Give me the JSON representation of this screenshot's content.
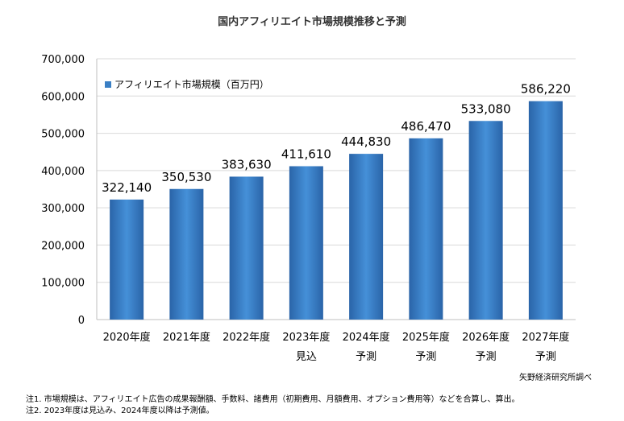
{
  "chart_data": {
    "type": "bar",
    "title": "国内アフィリエイト市場規模推移と予測",
    "categories": [
      "2020年度",
      "2021年度",
      "2022年度",
      "2023年度",
      "2024年度",
      "2025年度",
      "2026年度",
      "2027年度"
    ],
    "category_sublabels": [
      "",
      "",
      "",
      "見込",
      "予測",
      "予測",
      "予測",
      "予測"
    ],
    "series": [
      {
        "name": "アフィリエイト市場規模（百万円）",
        "values": [
          322140,
          350530,
          383630,
          411610,
          444830,
          486470,
          533080,
          586220
        ],
        "labels": [
          "322,140",
          "350,530",
          "383,630",
          "411,610",
          "444,830",
          "486,470",
          "533,080",
          "586,220"
        ]
      }
    ],
    "ylim": [
      0,
      700000
    ],
    "yticks": [
      0,
      100000,
      200000,
      300000,
      400000,
      500000,
      600000,
      700000
    ],
    "ytick_labels": [
      "0",
      "100,000",
      "200,000",
      "300,000",
      "400,000",
      "500,000",
      "600,000",
      "700,000"
    ],
    "grid": true,
    "legend_position": "top-left",
    "bar_color": "#3a7fc4"
  },
  "source": "矢野経済研究所調べ",
  "notes": [
    "注1.  市場規模は、アフィリエイト広告の成果報酬額、手数料、諸費用（初期費用、月額費用、オプション費用等）などを合算し、算出。",
    "注2.  2023年度は見込み、2024年度以降は予測値。"
  ]
}
